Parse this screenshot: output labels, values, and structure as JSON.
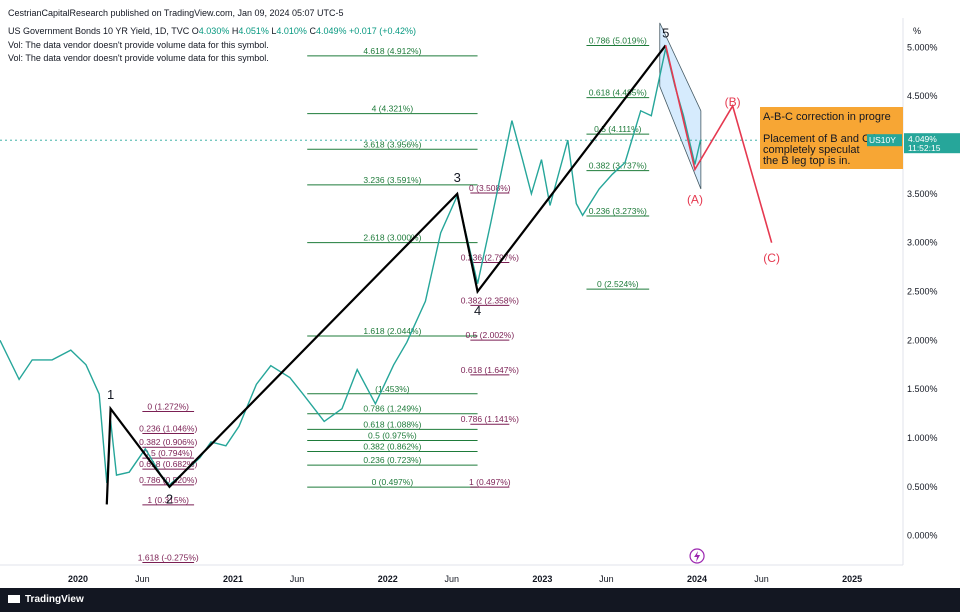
{
  "header": {
    "published": "CestrianCapitalResearch published on TradingView.com, Jan 09, 2024 05:07 UTC-5",
    "symbol_line": "US Government Bonds 10 YR Yield, 1D, TVC",
    "ohlc": {
      "o_label": "O",
      "o": "4.030%",
      "h_label": "H",
      "h": "4.051%",
      "l_label": "L",
      "l": "4.010%",
      "c_label": "C",
      "c": "4.049%",
      "change": "+0.017 (+0.42%)"
    },
    "vol_note_1": "Vol: The data vendor doesn't provide volume data for this symbol.",
    "vol_note_2": "Vol: The data vendor doesn't provide volume data for this symbol."
  },
  "axis_unit": "%",
  "footer": {
    "brand": "TradingView"
  },
  "colors": {
    "price_line": "#26a69a",
    "wave_black": "#000000",
    "fib_green": "#1e7b3a",
    "fib_purple": "#7b1f53",
    "red_path": "#e53950",
    "orange_box": "#f7a634",
    "channel": "#bbdefb",
    "up": "#089981",
    "down": "#f23645"
  },
  "chart_data": {
    "type": "line",
    "title": "US Government Bonds 10 YR Yield, 1D, TVC",
    "xlabel": "",
    "ylabel": "",
    "ylim": [
      -0.3,
      5.3
    ],
    "y_ticks": [
      0,
      0.5,
      1,
      1.5,
      2,
      2.5,
      3,
      3.5,
      4,
      4.5,
      5
    ],
    "y_tick_labels": [
      "0.000%",
      "0.500%",
      "1.000%",
      "1.500%",
      "2.000%",
      "2.500%",
      "3.000%",
      "3.500%",
      "4.000%",
      "4.500%",
      "5.000%"
    ],
    "xlim": [
      "2019-07-01",
      "2025-05-01"
    ],
    "x_ticks": [
      "2020-01-01",
      "2020-06-01",
      "2021-01-01",
      "2021-06-01",
      "2022-01-01",
      "2022-06-01",
      "2023-01-01",
      "2023-06-01",
      "2024-01-01",
      "2024-06-01",
      "2025-01-01"
    ],
    "x_tick_labels": [
      "2020",
      "Jun",
      "2021",
      "Jun",
      "2022",
      "Jun",
      "2023",
      "Jun",
      "2024",
      "Jun",
      "2025"
    ],
    "last_price": {
      "value": 4.049,
      "label": "4.049%",
      "time": "11:52:15",
      "symbol": "US10Y"
    },
    "series": [
      {
        "values_x": [
          "2019-07-01",
          "2019-08-15",
          "2019-09-15",
          "2019-11-01",
          "2019-12-15",
          "2020-01-20",
          "2020-02-20",
          "2020-03-09",
          "2020-03-18",
          "2020-04-01",
          "2020-05-01",
          "2020-06-08",
          "2020-07-15",
          "2020-08-04",
          "2020-09-15",
          "2020-10-15",
          "2020-11-10",
          "2020-12-15",
          "2021-01-15",
          "2021-02-25",
          "2021-03-31",
          "2021-05-15",
          "2021-06-15",
          "2021-08-04",
          "2021-09-15",
          "2021-10-21",
          "2021-12-03",
          "2022-01-15",
          "2022-02-15",
          "2022-03-31",
          "2022-05-06",
          "2022-06-14",
          "2022-07-15",
          "2022-08-01",
          "2022-09-01",
          "2022-10-21",
          "2022-11-15",
          "2022-12-06",
          "2022-12-30",
          "2023-01-19",
          "2023-03-02",
          "2023-03-22",
          "2023-04-06",
          "2023-05-15",
          "2023-06-15",
          "2023-07-15",
          "2023-08-21",
          "2023-09-15",
          "2023-10-19",
          "2023-11-10",
          "2023-11-30",
          "2023-12-27",
          "2024-01-09"
        ],
        "values": [
          2.0,
          1.6,
          1.8,
          1.8,
          1.9,
          1.75,
          1.45,
          0.54,
          1.18,
          0.62,
          0.65,
          0.89,
          0.62,
          0.52,
          0.68,
          0.8,
          0.96,
          0.92,
          1.12,
          1.55,
          1.74,
          1.62,
          1.45,
          1.17,
          1.3,
          1.7,
          1.35,
          1.75,
          1.98,
          2.4,
          3.1,
          3.48,
          2.9,
          2.58,
          3.2,
          4.25,
          3.85,
          3.5,
          3.85,
          3.38,
          4.05,
          3.4,
          3.28,
          3.55,
          3.7,
          3.82,
          4.35,
          4.3,
          4.99,
          4.6,
          4.3,
          3.8,
          4.049
        ]
      }
    ],
    "annotations": {
      "wave_labels": [
        {
          "text": "1",
          "x": "2020-03-18",
          "y": 1.4
        },
        {
          "text": "2",
          "x": "2020-08-04",
          "y": 0.33
        },
        {
          "text": "3",
          "x": "2022-06-14",
          "y": 3.62
        },
        {
          "text": "4",
          "x": "2022-08-01",
          "y": 2.26
        },
        {
          "text": "5",
          "x": "2023-10-19",
          "y": 5.1
        },
        {
          "text": "(A)",
          "x": "2023-12-27",
          "y": 3.4
        },
        {
          "text": "(B)",
          "x": "2024-03-25",
          "y": 4.4
        },
        {
          "text": "(C)",
          "x": "2024-06-25",
          "y": 2.8
        }
      ],
      "wave_path": {
        "x": [
          "2020-03-09",
          "2020-03-18",
          "2020-08-04",
          "2022-06-14",
          "2022-08-01",
          "2023-10-19"
        ],
        "y": [
          0.32,
          1.3,
          0.5,
          3.5,
          2.5,
          5.02
        ]
      },
      "abc_path": {
        "x": [
          "2023-10-19",
          "2023-12-27",
          "2024-03-25",
          "2024-06-25"
        ],
        "y": [
          5.02,
          3.75,
          4.4,
          3.0
        ]
      },
      "fib_green": [
        {
          "label": "0 (1.272%)",
          "y": 1.272,
          "x1": "2020-06-01",
          "x2": "2020-10-01",
          "color": "purple"
        },
        {
          "label": "0.236 (1.046%)",
          "y": 1.046,
          "x1": "2020-06-01",
          "x2": "2020-10-01",
          "color": "purple"
        },
        {
          "label": "0.382 (0.906%)",
          "y": 0.906,
          "x1": "2020-06-01",
          "x2": "2020-10-01",
          "color": "purple"
        },
        {
          "label": "0.5 (0.794%)",
          "y": 0.794,
          "x1": "2020-06-01",
          "x2": "2020-10-01",
          "color": "purple"
        },
        {
          "label": "0.618 (0.682%)",
          "y": 0.682,
          "x1": "2020-06-01",
          "x2": "2020-10-01",
          "color": "purple"
        },
        {
          "label": "0.786 (0.520%)",
          "y": 0.52,
          "x1": "2020-06-01",
          "x2": "2020-10-01",
          "color": "purple"
        },
        {
          "label": "1 (0.315%)",
          "y": 0.315,
          "x1": "2020-06-01",
          "x2": "2020-10-01",
          "color": "purple"
        },
        {
          "label": "1.618 (-0.275%)",
          "y": -0.275,
          "x1": "2020-06-01",
          "x2": "2020-10-01",
          "color": "purple"
        },
        {
          "label": "0 (0.497%)",
          "y": 0.497,
          "x1": "2021-06-25",
          "x2": "2022-08-01",
          "color": "green"
        },
        {
          "label": "0.236 (0.723%)",
          "y": 0.723,
          "x1": "2021-06-25",
          "x2": "2022-08-01",
          "color": "green"
        },
        {
          "label": "0.382 (0.862%)",
          "y": 0.862,
          "x1": "2021-06-25",
          "x2": "2022-08-01",
          "color": "green"
        },
        {
          "label": "0.5 (0.975%)",
          "y": 0.975,
          "x1": "2021-06-25",
          "x2": "2022-08-01",
          "color": "green"
        },
        {
          "label": "0.618 (1.088%)",
          "y": 1.088,
          "x1": "2021-06-25",
          "x2": "2022-08-01",
          "color": "green"
        },
        {
          "label": "0.786 (1.249%)",
          "y": 1.249,
          "x1": "2021-06-25",
          "x2": "2022-08-01",
          "color": "green"
        },
        {
          "label": "(1.453%)",
          "y": 1.453,
          "x1": "2021-06-25",
          "x2": "2022-08-01",
          "color": "green"
        },
        {
          "label": "1.618 (2.044%)",
          "y": 2.044,
          "x1": "2021-06-25",
          "x2": "2022-08-01",
          "color": "green"
        },
        {
          "label": "2.618 (3.000%)",
          "y": 3.0,
          "x1": "2021-06-25",
          "x2": "2022-08-01",
          "color": "green"
        },
        {
          "label": "3.236 (3.591%)",
          "y": 3.591,
          "x1": "2021-06-25",
          "x2": "2022-08-01",
          "color": "green"
        },
        {
          "label": "3.618 (3.956%)",
          "y": 3.956,
          "x1": "2021-06-25",
          "x2": "2022-08-01",
          "color": "green"
        },
        {
          "label": "4 (4.321%)",
          "y": 4.321,
          "x1": "2021-06-25",
          "x2": "2022-08-01",
          "color": "green"
        },
        {
          "label": "4.618 (4.912%)",
          "y": 4.912,
          "x1": "2021-06-25",
          "x2": "2022-08-01",
          "color": "green"
        },
        {
          "label": "0 (3.508%)",
          "y": 3.508,
          "x1": "2022-07-15",
          "x2": "2022-10-15",
          "color": "purple"
        },
        {
          "label": "0.236 (2.797%)",
          "y": 2.797,
          "x1": "2022-07-15",
          "x2": "2022-10-15",
          "color": "purple"
        },
        {
          "label": "0.382 (2.358%)",
          "y": 2.358,
          "x1": "2022-07-15",
          "x2": "2022-10-15",
          "color": "purple"
        },
        {
          "label": "0.5 (2.002%)",
          "y": 2.002,
          "x1": "2022-07-15",
          "x2": "2022-10-15",
          "color": "purple"
        },
        {
          "label": "0.618 (1.647%)",
          "y": 1.647,
          "x1": "2022-07-15",
          "x2": "2022-10-15",
          "color": "purple"
        },
        {
          "label": "0.786 (1.141%)",
          "y": 1.141,
          "x1": "2022-07-15",
          "x2": "2022-10-15",
          "color": "purple"
        },
        {
          "label": "1 (0.497%)",
          "y": 0.497,
          "x1": "2022-07-15",
          "x2": "2022-10-15",
          "color": "purple"
        },
        {
          "label": "0 (2.524%)",
          "y": 2.524,
          "x1": "2023-04-15",
          "x2": "2023-09-10",
          "color": "green"
        },
        {
          "label": "0.236 (3.273%)",
          "y": 3.273,
          "x1": "2023-04-15",
          "x2": "2023-09-10",
          "color": "green"
        },
        {
          "label": "0.382 (3.737%)",
          "y": 3.737,
          "x1": "2023-04-15",
          "x2": "2023-09-10",
          "color": "green"
        },
        {
          "label": "0.5 (4.111%)",
          "y": 4.111,
          "x1": "2023-04-15",
          "x2": "2023-09-10",
          "color": "green"
        },
        {
          "label": "0.618 (4.485%)",
          "y": 4.485,
          "x1": "2023-04-15",
          "x2": "2023-09-10",
          "color": "green"
        },
        {
          "label": "0.786 (5.019%)",
          "y": 5.019,
          "x1": "2023-04-15",
          "x2": "2023-09-10",
          "color": "green"
        }
      ],
      "note_lines": [
        "A-B-C correction in progre",
        "",
        "Placement of B and C leg a",
        "completely speculat",
        "the B leg top is in."
      ]
    }
  }
}
